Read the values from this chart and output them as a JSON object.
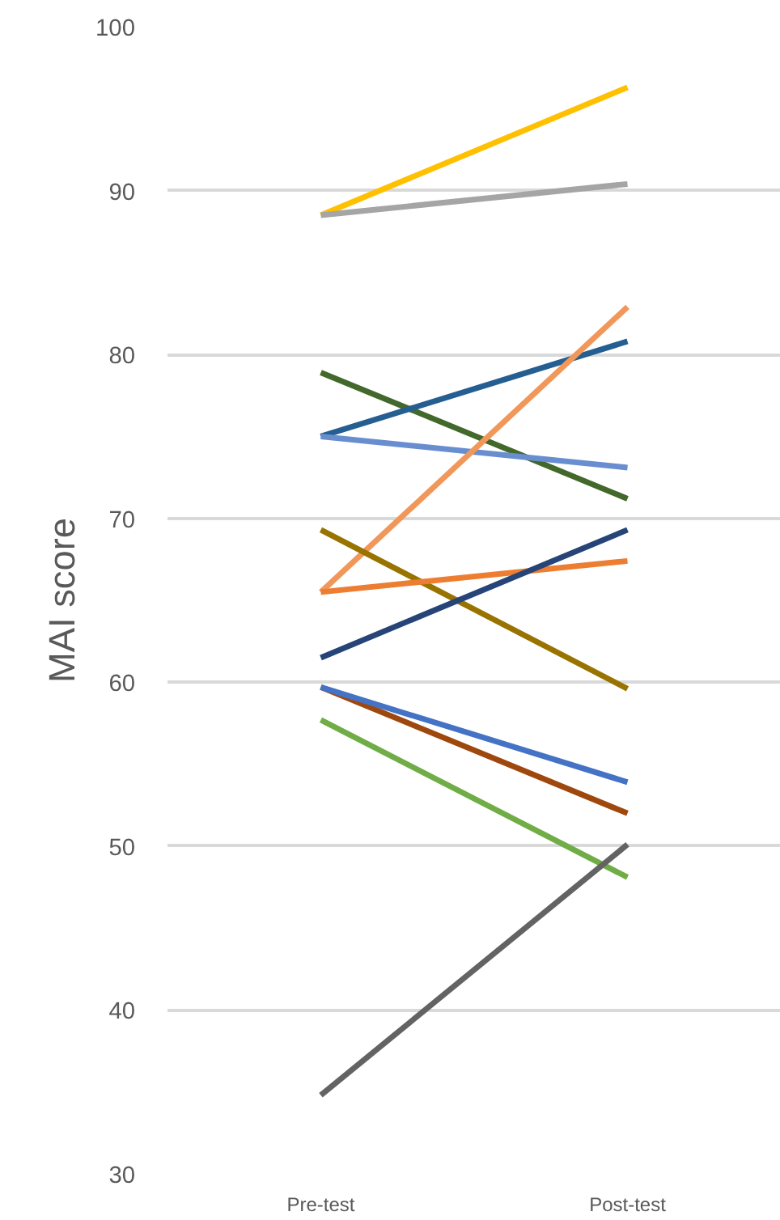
{
  "chart_data": {
    "type": "line",
    "ylabel": "MAI score",
    "categories": [
      "Pre-test",
      "Post-test"
    ],
    "ylim": [
      30,
      100
    ],
    "yticks": [
      30,
      40,
      50,
      60,
      70,
      80,
      90,
      100
    ],
    "grid": "y",
    "marker": "none",
    "line_style": "solid",
    "series": [
      {
        "color": "#ffc000",
        "values": [
          88.5,
          96.3
        ]
      },
      {
        "color": "#a5a5a5",
        "values": [
          88.5,
          90.4
        ]
      },
      {
        "color": "#43682b",
        "values": [
          78.9,
          71.2
        ]
      },
      {
        "color": "#255e91",
        "values": [
          75.0,
          80.8
        ]
      },
      {
        "color": "#698ed0",
        "values": [
          75.0,
          73.1
        ]
      },
      {
        "color": "#f1975a",
        "values": [
          65.5,
          82.9
        ]
      },
      {
        "color": "#997300",
        "values": [
          69.3,
          59.6
        ]
      },
      {
        "color": "#ed7d31",
        "values": [
          65.5,
          67.4
        ]
      },
      {
        "color": "#264478",
        "values": [
          61.5,
          69.3
        ]
      },
      {
        "color": "#9e480e",
        "values": [
          59.7,
          52.0
        ]
      },
      {
        "color": "#4472c4",
        "values": [
          59.7,
          53.9
        ]
      },
      {
        "color": "#70ad47",
        "values": [
          57.7,
          48.1
        ]
      },
      {
        "color": "#636363",
        "values": [
          34.8,
          50.1
        ]
      }
    ]
  }
}
